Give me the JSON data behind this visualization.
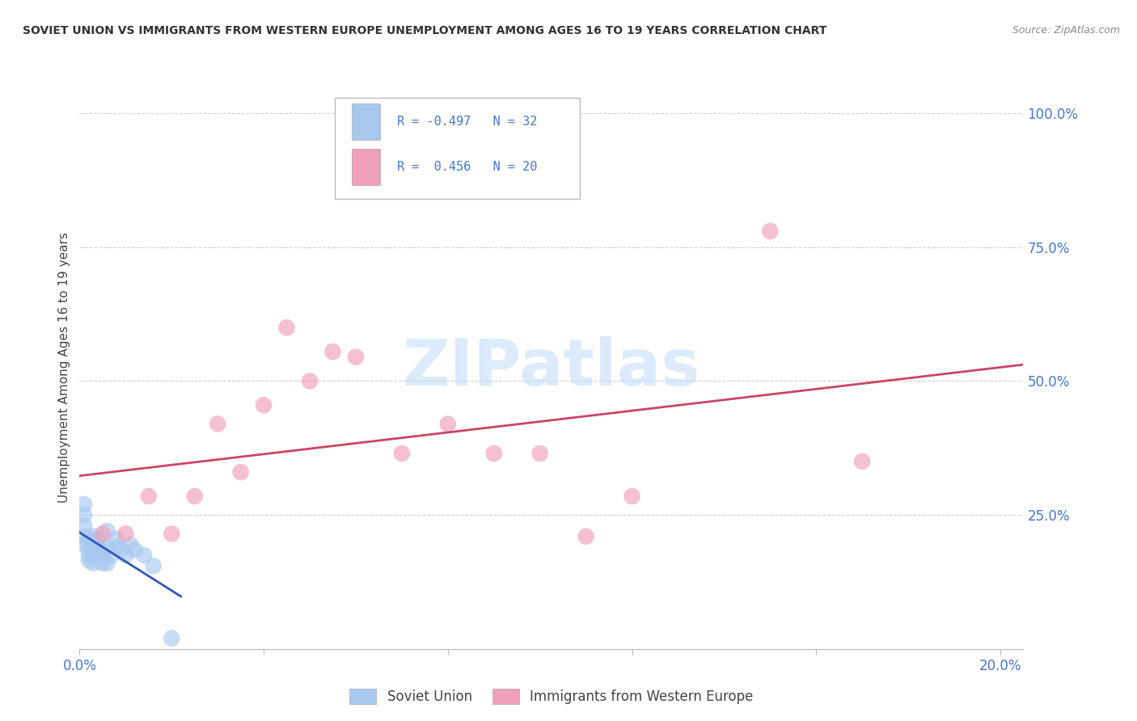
{
  "title": "SOVIET UNION VS IMMIGRANTS FROM WESTERN EUROPE UNEMPLOYMENT AMONG AGES 16 TO 19 YEARS CORRELATION CHART",
  "source": "Source: ZipAtlas.com",
  "ylabel": "Unemployment Among Ages 16 to 19 years",
  "soviet_R": -0.497,
  "soviet_N": 32,
  "western_R": 0.456,
  "western_N": 20,
  "soviet_color": "#a8c8f0",
  "western_color": "#f0a0b8",
  "soviet_line_color": "#3355bb",
  "western_line_color": "#cc4466",
  "watermark_color": "#b8d8f8",
  "grid_color": "#cccccc",
  "tick_color": "#4477cc",
  "title_color": "#333333",
  "source_color": "#888888",
  "soviet_x": [
    0.001,
    0.001,
    0.001,
    0.001,
    0.001,
    0.002,
    0.002,
    0.002,
    0.002,
    0.003,
    0.003,
    0.003,
    0.003,
    0.004,
    0.004,
    0.004,
    0.005,
    0.005,
    0.005,
    0.006,
    0.006,
    0.006,
    0.007,
    0.008,
    0.008,
    0.009,
    0.01,
    0.011,
    0.012,
    0.014,
    0.016,
    0.02
  ],
  "soviet_y": [
    0.27,
    0.25,
    0.23,
    0.21,
    0.195,
    0.205,
    0.19,
    0.175,
    0.165,
    0.21,
    0.195,
    0.175,
    0.16,
    0.205,
    0.19,
    0.175,
    0.185,
    0.175,
    0.16,
    0.22,
    0.19,
    0.16,
    0.175,
    0.205,
    0.19,
    0.185,
    0.175,
    0.195,
    0.185,
    0.175,
    0.155,
    0.02
  ],
  "western_x": [
    0.005,
    0.01,
    0.015,
    0.02,
    0.025,
    0.03,
    0.035,
    0.04,
    0.045,
    0.05,
    0.055,
    0.06,
    0.07,
    0.08,
    0.09,
    0.1,
    0.11,
    0.12,
    0.15,
    0.17
  ],
  "western_y": [
    0.215,
    0.215,
    0.285,
    0.215,
    0.285,
    0.42,
    0.33,
    0.455,
    0.6,
    0.5,
    0.555,
    0.545,
    0.365,
    0.42,
    0.365,
    0.365,
    0.21,
    0.285,
    0.78,
    0.35
  ],
  "xlim": [
    0.0,
    0.205
  ],
  "ylim": [
    0.0,
    1.05
  ],
  "yticks": [
    0.0,
    0.25,
    0.5,
    0.75,
    1.0
  ],
  "ytick_labels": [
    "",
    "25.0%",
    "50.0%",
    "75.0%",
    "100.0%"
  ],
  "xticks": [
    0.0,
    0.04,
    0.08,
    0.12,
    0.16,
    0.2
  ],
  "xtick_labels": [
    "0.0%",
    "",
    "",
    "",
    "",
    "20.0%"
  ]
}
